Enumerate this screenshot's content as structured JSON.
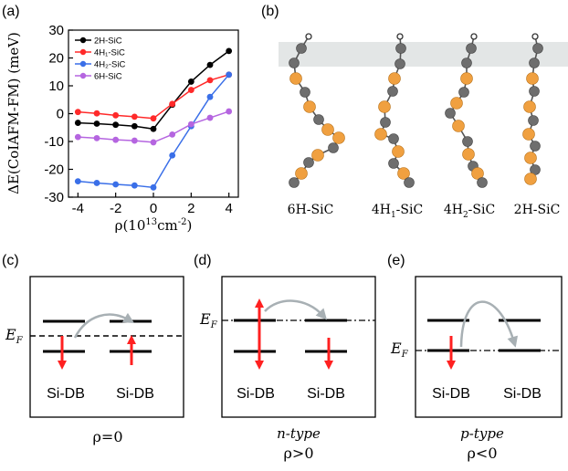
{
  "panels": {
    "a": "(a)",
    "b": "(b)",
    "c": "(c)",
    "d": "(d)",
    "e": "(e)"
  },
  "chart_data": {
    "type": "line",
    "title": "",
    "ylabel": "ΔE(CoIAFM-FM) (meV)",
    "xlabel_main": "ρ(10",
    "xlabel_exp": "13",
    "xlabel_unit": "cm",
    "xlabel_unit_exp": "-2",
    "xlabel_close": ")",
    "x": [
      -4,
      -3,
      -2,
      -1,
      0,
      1,
      2,
      3,
      4
    ],
    "xlim": [
      -4.5,
      4.5
    ],
    "ylim": [
      -30,
      30
    ],
    "xticks": [
      "-4",
      "-2",
      "0",
      "2",
      "4"
    ],
    "yticks": [
      "-30",
      "-20",
      "-10",
      "0",
      "10",
      "20",
      "30"
    ],
    "legend_position": "top-left",
    "grid": false,
    "series": [
      {
        "name": "2H-SiC",
        "color": "#000000",
        "values": [
          -3.3,
          -3.6,
          -4.0,
          -4.5,
          -5.5,
          3.2,
          11.5,
          17.5,
          22.5
        ]
      },
      {
        "name": "4H₁-SiC",
        "color": "#ff2a2a",
        "values": [
          0.6,
          0.1,
          -0.6,
          -1.1,
          -1.7,
          3.5,
          8.5,
          12.0,
          14.0
        ]
      },
      {
        "name": "4H₂-SiC",
        "color": "#3a6fe8",
        "values": [
          -24.3,
          -24.9,
          -25.4,
          -25.8,
          -26.5,
          -15.0,
          -4.5,
          6.0,
          14.0
        ]
      },
      {
        "name": "6H-SiC",
        "color": "#b565e0",
        "values": [
          -8.4,
          -8.8,
          -9.4,
          -9.7,
          -10.3,
          -7.5,
          -3.8,
          -1.5,
          0.8
        ]
      }
    ]
  },
  "structures": {
    "labels_main": [
      "6H-SiC",
      "4H",
      "4H",
      "2H-SiC"
    ],
    "labels_sub": [
      "",
      "1",
      "2",
      ""
    ],
    "labels_tail": [
      "",
      "-SiC",
      "-SiC",
      ""
    ],
    "si_color": "#6e6e6e",
    "c_color": "#f0a040",
    "band_color": "#e3e6e6"
  },
  "diagrams": {
    "level_label": "Si-DB",
    "ef_main": "E",
    "ef_sub": "F",
    "c_rho": "ρ=0",
    "d_type": "n-type",
    "d_rho": "ρ>0",
    "e_type": "p-type",
    "e_rho": "ρ<0",
    "spin_color": "#ff2020",
    "hop_color": "#a8b0b4"
  }
}
